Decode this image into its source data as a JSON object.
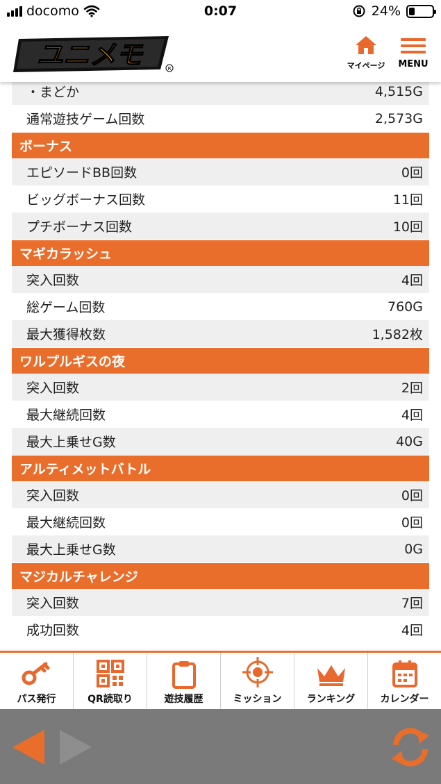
{
  "status_bar": {
    "carrier": "docomo",
    "time": "0:07",
    "battery": "24%"
  },
  "header": {
    "logo_text": "ユニメモ",
    "mypage_label": "マイページ",
    "menu_label": "MENU"
  },
  "rows_top": [
    {
      "label": "・まどか",
      "value": "4,515G"
    },
    {
      "label": "通常遊技ゲーム回数",
      "value": "2,573G"
    }
  ],
  "sections": [
    {
      "title": "ボーナス",
      "rows": [
        {
          "label": "エピソードBB回数",
          "value": "0回"
        },
        {
          "label": "ビッグボーナス回数",
          "value": "11回"
        },
        {
          "label": "プチボーナス回数",
          "value": "10回"
        }
      ]
    },
    {
      "title": "マギカラッシュ",
      "rows": [
        {
          "label": "突入回数",
          "value": "4回"
        },
        {
          "label": "総ゲーム回数",
          "value": "760G"
        },
        {
          "label": "最大獲得枚数",
          "value": "1,582枚"
        }
      ]
    },
    {
      "title": "ワルプルギスの夜",
      "rows": [
        {
          "label": "突入回数",
          "value": "2回"
        },
        {
          "label": "最大継続回数",
          "value": "4回"
        },
        {
          "label": "最大上乗せG数",
          "value": "40G"
        }
      ]
    },
    {
      "title": "アルティメットバトル",
      "rows": [
        {
          "label": "突入回数",
          "value": "0回"
        },
        {
          "label": "最大継続回数",
          "value": "0回"
        },
        {
          "label": "最大上乗せG数",
          "value": "0G"
        }
      ]
    },
    {
      "title": "マジカルチャレンジ",
      "rows": [
        {
          "label": "突入回数",
          "value": "7回"
        },
        {
          "label": "成功回数",
          "value": "4回"
        }
      ]
    }
  ],
  "bottom_nav": [
    {
      "label": "パス発行",
      "icon": "key-icon"
    },
    {
      "label": "QR読取り",
      "icon": "qr-code-icon"
    },
    {
      "label": "遊技履歴",
      "icon": "clipboard-icon"
    },
    {
      "label": "ミッション",
      "icon": "target-icon"
    },
    {
      "label": "ランキング",
      "icon": "crown-icon"
    },
    {
      "label": "カレンダー",
      "icon": "calendar-icon"
    }
  ],
  "colors": {
    "accent": "#ea6e2b",
    "row_gray": "#efefef",
    "browser_bar": "#7a7a7a"
  }
}
